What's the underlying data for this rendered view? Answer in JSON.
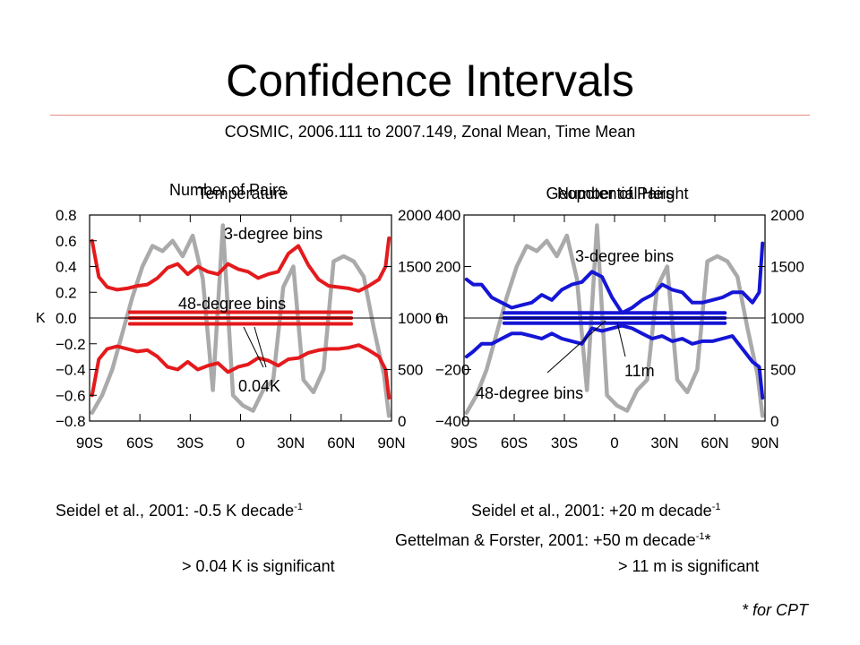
{
  "slide": {
    "title": "Confidence Intervals",
    "subtitle": "COSMIC, 2006.111 to 2007.149, Zonal Mean, Time Mean"
  },
  "notes": {
    "left_ref_text": "Seidel et al., 2001: -0.5 K decade",
    "left_ref_sup": "-1",
    "right_ref1_text": "Seidel et al., 2001: +20 m decade",
    "right_ref1_sup": "-1",
    "right_ref2_text": "Gettelman & Forster, 2001: +50 m decade",
    "right_ref2_sup": "-1",
    "right_ref2_suffix": "*",
    "left_sig": "> 0.04 K is significant",
    "right_sig": "> 11 m is significant",
    "footnote": "* for CPT"
  },
  "colors": {
    "temperature": "#e41a1c",
    "height": "#1515d6",
    "pairs": "#aaaaaa",
    "axis": "#000000"
  },
  "chart_data": [
    {
      "type": "line",
      "titles": [
        "Number of Pairs",
        "Temperature"
      ],
      "xticks": [
        "90S",
        "60S",
        "30S",
        "0",
        "30N",
        "60N",
        "90N"
      ],
      "xlim": [
        -90,
        90
      ],
      "ylabel_left": "K",
      "ylim_left": [
        -0.8,
        0.8
      ],
      "yticks_left": [
        "0.8",
        "0.6",
        "0.4",
        "0.2",
        "0.0",
        "−0.2",
        "−0.4",
        "−0.6",
        "−0.8"
      ],
      "ylim_right": [
        0,
        2000
      ],
      "yticks_right": [
        "2000",
        "1500",
        "1000",
        "500",
        "0"
      ],
      "annotations": [
        "3-degree bins",
        "48-degree bins",
        "0.04K"
      ],
      "grid": false,
      "series": [
        {
          "axis": "right",
          "color": "pairs",
          "x": [
            -88.5,
            -82.5,
            -76.5,
            -70.5,
            -64.5,
            -58.5,
            -52.5,
            -46.5,
            -40.5,
            -34.5,
            -28.5,
            -22.5,
            -16.5,
            -10.5,
            -4.5,
            1.5,
            7.5,
            13.5,
            19.5,
            25.5,
            31.5,
            37.5,
            43.5,
            49.5,
            55.5,
            61.5,
            67.5,
            73.5,
            79.5,
            85.5,
            88.5
          ],
          "values": [
            80,
            250,
            500,
            850,
            1200,
            1500,
            1700,
            1650,
            1750,
            1600,
            1800,
            1380,
            300,
            1900,
            250,
            150,
            100,
            300,
            400,
            1300,
            1500,
            400,
            280,
            500,
            1550,
            1600,
            1550,
            1400,
            900,
            450,
            50
          ]
        },
        {
          "axis": "left",
          "color": "temperature",
          "x": [
            -88.5,
            -84.5,
            -79.5,
            -73.5,
            -67.5,
            -61.5,
            -55.5,
            -49.5,
            -43.5,
            -37.5,
            -31.5,
            -25.5,
            -19.5,
            -13.5,
            -7.5,
            -1.5,
            4.5,
            10.5,
            16.5,
            22.5,
            28.5,
            34.5,
            40.5,
            46.5,
            52.5,
            58.5,
            64.5,
            70.5,
            76.5,
            82.5,
            86.5,
            88.5
          ],
          "values": [
            0.6,
            0.32,
            0.24,
            0.22,
            0.23,
            0.25,
            0.26,
            0.31,
            0.39,
            0.42,
            0.34,
            0.4,
            0.36,
            0.34,
            0.42,
            0.38,
            0.36,
            0.31,
            0.34,
            0.36,
            0.5,
            0.56,
            0.41,
            0.3,
            0.25,
            0.24,
            0.23,
            0.21,
            0.25,
            0.3,
            0.4,
            0.62
          ]
        },
        {
          "axis": "left",
          "color": "temperature",
          "x": [
            -88.5,
            -84.5,
            -79.5,
            -73.5,
            -67.5,
            -61.5,
            -55.5,
            -49.5,
            -43.5,
            -37.5,
            -31.5,
            -25.5,
            -19.5,
            -13.5,
            -7.5,
            -1.5,
            4.5,
            10.5,
            16.5,
            22.5,
            28.5,
            34.5,
            40.5,
            46.5,
            52.5,
            58.5,
            64.5,
            70.5,
            76.5,
            82.5,
            86.5,
            88.5
          ],
          "values": [
            -0.6,
            -0.32,
            -0.24,
            -0.22,
            -0.24,
            -0.26,
            -0.25,
            -0.3,
            -0.38,
            -0.4,
            -0.34,
            -0.4,
            -0.37,
            -0.35,
            -0.42,
            -0.38,
            -0.36,
            -0.31,
            -0.33,
            -0.37,
            -0.32,
            -0.31,
            -0.27,
            -0.25,
            -0.24,
            -0.24,
            -0.23,
            -0.21,
            -0.25,
            -0.3,
            -0.4,
            -0.62
          ]
        },
        {
          "axis": "left",
          "color": "temperature",
          "x": [
            -66,
            66
          ],
          "values": [
            0.045,
            0.045
          ]
        },
        {
          "axis": "left",
          "color": "temperature",
          "x": [
            -66,
            66
          ],
          "values": [
            0.0,
            0.0
          ]
        },
        {
          "axis": "left",
          "color": "temperature",
          "x": [
            -66,
            66
          ],
          "values": [
            -0.045,
            -0.045
          ]
        }
      ]
    },
    {
      "type": "line",
      "titles": [
        "Number of Pairs",
        "Geopotential Height"
      ],
      "xticks": [
        "90S",
        "60S",
        "30S",
        "0",
        "30N",
        "60N",
        "90N"
      ],
      "xlim": [
        -90,
        90
      ],
      "ylabel_left": "m",
      "ylim_left": [
        -400,
        400
      ],
      "yticks_left": [
        "400",
        "200",
        "0",
        "−200",
        "−400"
      ],
      "ylim_right": [
        0,
        2000
      ],
      "yticks_right": [
        "2000",
        "1500",
        "1000",
        "500",
        "0"
      ],
      "annotations": [
        "3-degree bins",
        "48-degree bins",
        "11m"
      ],
      "grid": false,
      "series": [
        {
          "axis": "right",
          "color": "pairs",
          "x": [
            -88.5,
            -82.5,
            -76.5,
            -70.5,
            -64.5,
            -58.5,
            -52.5,
            -46.5,
            -40.5,
            -34.5,
            -28.5,
            -22.5,
            -16.5,
            -10.5,
            -4.5,
            1.5,
            7.5,
            13.5,
            19.5,
            25.5,
            31.5,
            37.5,
            43.5,
            49.5,
            55.5,
            61.5,
            67.5,
            73.5,
            79.5,
            85.5,
            88.5
          ],
          "values": [
            80,
            250,
            500,
            850,
            1200,
            1500,
            1700,
            1650,
            1750,
            1600,
            1800,
            1380,
            300,
            1900,
            250,
            150,
            100,
            300,
            400,
            1300,
            1500,
            400,
            280,
            500,
            1550,
            1600,
            1550,
            1400,
            900,
            450,
            50
          ]
        },
        {
          "axis": "left",
          "color": "height",
          "x": [
            -88.5,
            -84.5,
            -79.5,
            -73.5,
            -67.5,
            -61.5,
            -55.5,
            -49.5,
            -43.5,
            -37.5,
            -31.5,
            -25.5,
            -19.5,
            -13.5,
            -7.5,
            -1.5,
            4.5,
            10.5,
            16.5,
            22.5,
            28.5,
            34.5,
            40.5,
            46.5,
            52.5,
            58.5,
            64.5,
            70.5,
            76.5,
            82.5,
            86.5,
            88.5
          ],
          "values": [
            150,
            130,
            130,
            80,
            60,
            40,
            50,
            60,
            90,
            70,
            110,
            130,
            140,
            180,
            160,
            80,
            20,
            40,
            70,
            90,
            130,
            110,
            100,
            60,
            60,
            70,
            80,
            100,
            100,
            60,
            100,
            290
          ]
        },
        {
          "axis": "left",
          "color": "height",
          "x": [
            -88.5,
            -84.5,
            -79.5,
            -73.5,
            -67.5,
            -61.5,
            -55.5,
            -49.5,
            -43.5,
            -37.5,
            -31.5,
            -25.5,
            -19.5,
            -13.5,
            -7.5,
            -1.5,
            4.5,
            10.5,
            16.5,
            22.5,
            28.5,
            34.5,
            40.5,
            46.5,
            52.5,
            58.5,
            64.5,
            70.5,
            76.5,
            82.5,
            86.5,
            88.5
          ],
          "values": [
            -150,
            -130,
            -100,
            -100,
            -80,
            -60,
            -60,
            -70,
            -80,
            -60,
            -80,
            -90,
            -100,
            -40,
            -50,
            -40,
            -30,
            -40,
            -60,
            -80,
            -70,
            -90,
            -80,
            -100,
            -90,
            -90,
            -80,
            -70,
            -120,
            -170,
            -190,
            -310
          ]
        },
        {
          "axis": "left",
          "color": "height",
          "x": [
            -66,
            66
          ],
          "values": [
            20,
            20
          ]
        },
        {
          "axis": "left",
          "color": "height",
          "x": [
            -66,
            66
          ],
          "values": [
            0,
            0
          ]
        },
        {
          "axis": "left",
          "color": "height",
          "x": [
            -66,
            66
          ],
          "values": [
            -20,
            -20
          ]
        }
      ]
    }
  ]
}
